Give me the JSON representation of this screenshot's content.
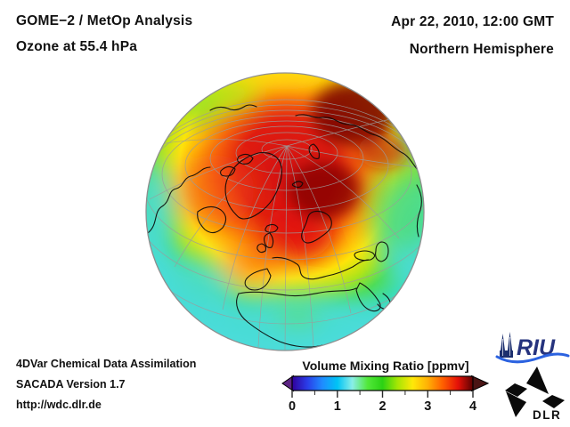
{
  "header": {
    "title_line1": "GOME−2 / MetOp Analysis",
    "title_line2": "Ozone at 55.4 hPa",
    "date_line": "Apr 22, 2010, 12:00 GMT",
    "region_line": "Northern Hemisphere"
  },
  "footer": {
    "line1": "4DVar Chemical Data Assimilation",
    "line2": "SACADA Version 1.7",
    "line3": "http://wdc.dlr.de"
  },
  "colorbar": {
    "title": "Volume Mixing Ratio [ppmv]",
    "tick_labels": [
      "0",
      "1",
      "2",
      "3",
      "4"
    ]
  },
  "logos": {
    "riu_text": "RIU",
    "dlr_text": "DLR"
  },
  "chart_data": {
    "type": "heatmap",
    "title": "GOME−2 / MetOp Analysis — Ozone at 55.4 hPa",
    "datetime": "Apr 22, 2010, 12:00 GMT",
    "region": "Northern Hemisphere",
    "projection": "orthographic globe, oblique view centered near 45°N over Europe/North Atlantic",
    "colorbar": {
      "label": "Volume Mixing Ratio [ppmv]",
      "range": [
        0,
        4
      ],
      "major_ticks": [
        0,
        1,
        2,
        3,
        4
      ],
      "minor_tick_step": 0.5,
      "colors": [
        "#30009a",
        "#2a3ce8",
        "#1f8cff",
        "#00c3f5",
        "#8aeee8",
        "#52e83a",
        "#2bd214",
        "#a6e604",
        "#ffe808",
        "#ffb005",
        "#ff5f00",
        "#e51108",
        "#5a0202"
      ],
      "under_color": "#5c2483",
      "over_color": "#4a1414"
    },
    "field_readings_ppmv": [
      {
        "region": "Arctic maxima (NE Siberia / Laptev sector, north of Greenland–Kara Sea)",
        "value": 3.9,
        "color": "dark red"
      },
      {
        "region": "Polar cap ring incl. Scandinavia, N Canada, N Atlantic",
        "value": 3.3,
        "color": "red"
      },
      {
        "region": "Mid-latitude band (W Europe, S Canada, central Asia)",
        "value": 2.6,
        "color": "orange-yellow"
      },
      {
        "region": "Subtropics (Mediterranean, Near East)",
        "value": 2.0,
        "color": "green"
      },
      {
        "region": "Tropics (Africa, Arabia, SE Asia, low-latitude oceans)",
        "value": 1.3,
        "color": "cyan"
      }
    ],
    "overlays": [
      "gray graticule (meridians/parallels)",
      "black coastlines"
    ]
  }
}
